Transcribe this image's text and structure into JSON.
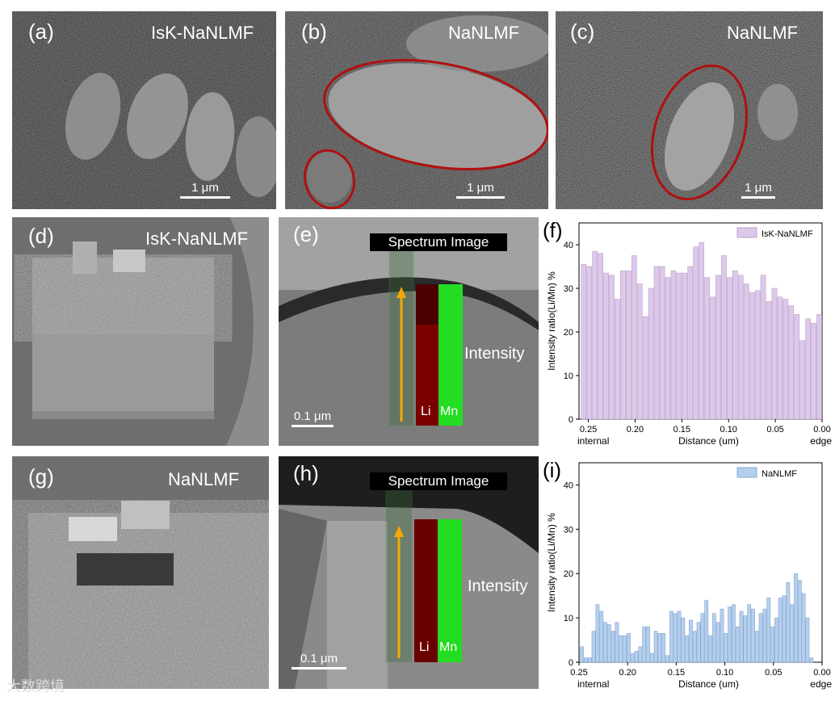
{
  "panels": {
    "a": {
      "label": "(a)",
      "title": "IsK-NaNLMF",
      "scale": "1 μm"
    },
    "b": {
      "label": "(b)",
      "title": "NaNLMF",
      "scale": "1 μm"
    },
    "c": {
      "label": "(c)",
      "title": "NaNLMF",
      "scale": "1 μm"
    },
    "d": {
      "label": "(d)",
      "title": "IsK-NaNLMF"
    },
    "e": {
      "label": "(e)",
      "spectrum": "Spectrum Image",
      "intensity": "Intensity",
      "li": "Li",
      "mn": "Mn",
      "scale": "0.1 μm"
    },
    "f": {
      "label": "(f)"
    },
    "g": {
      "label": "(g)",
      "title": "NaNLMF"
    },
    "h": {
      "label": "(h)",
      "spectrum": "Spectrum Image",
      "intensity": "Intensity",
      "li": "Li",
      "mn": "Mn",
      "scale": "0.1 μm"
    },
    "i": {
      "label": "(i)"
    }
  },
  "watermark": "大数跨境",
  "colors": {
    "f_bar": "#ddc8ea",
    "f_edge": "#b9a0c9",
    "i_bar": "#b4cfee",
    "i_edge": "#8aa9cf",
    "li": "#7a0000",
    "mn": "#22dd22",
    "arrow": "#f5a800",
    "ellipse": "#b01010"
  },
  "chart_data": [
    {
      "type": "bar",
      "panel": "f",
      "ylabel": "Intensity ratio(Li/Mn) %",
      "xlabel": "Distance (um)",
      "left_note": "internal",
      "right_note": "edge",
      "legend": "IsK-NaNLMF",
      "legend_position": "top-right",
      "xlim": [
        0.26,
        0.0
      ],
      "ylim": [
        0,
        45
      ],
      "xticks": [
        "0.25",
        "0.20",
        "0.15",
        "0.10",
        "0.05",
        "0.00"
      ],
      "yticks": [
        "0",
        "10",
        "20",
        "30",
        "40"
      ],
      "series": [
        {
          "name": "IsK-NaNLMF",
          "x": [
            0.255,
            0.249,
            0.243,
            0.237,
            0.231,
            0.225,
            0.219,
            0.213,
            0.207,
            0.201,
            0.195,
            0.189,
            0.183,
            0.177,
            0.171,
            0.165,
            0.159,
            0.153,
            0.147,
            0.141,
            0.135,
            0.129,
            0.123,
            0.117,
            0.111,
            0.105,
            0.099,
            0.093,
            0.087,
            0.081,
            0.075,
            0.069,
            0.063,
            0.057,
            0.051,
            0.045,
            0.039,
            0.033,
            0.027,
            0.021,
            0.015,
            0.009,
            0.003
          ],
          "values": [
            35.5,
            35,
            38.5,
            38,
            33.5,
            33,
            27.5,
            34,
            34,
            37.5,
            31,
            23.5,
            30,
            35,
            35,
            32.5,
            34,
            33.5,
            33.5,
            35,
            39.5,
            40.5,
            32.5,
            28,
            33,
            37.5,
            32.5,
            34,
            33,
            31,
            29,
            29.5,
            33,
            27,
            30,
            28,
            27.5,
            26,
            24,
            18,
            23,
            22,
            24
          ]
        }
      ]
    },
    {
      "type": "bar",
      "panel": "i",
      "ylabel": "Intensity ratio(Li/Mn) %",
      "xlabel": "Distance (um)",
      "left_note": "internal",
      "right_note": "edge",
      "legend": "NaNLMF",
      "legend_position": "top-right",
      "xlim": [
        0.25,
        0.0
      ],
      "ylim": [
        0,
        45
      ],
      "xticks": [
        "0.25",
        "0.20",
        "0.15",
        "0.10",
        "0.05",
        "0.00"
      ],
      "yticks": [
        "0",
        "10",
        "20",
        "30",
        "40"
      ],
      "series": [
        {
          "name": "NaNLMF",
          "x": [
            0.247,
            0.243,
            0.239,
            0.235,
            0.231,
            0.227,
            0.223,
            0.219,
            0.215,
            0.211,
            0.207,
            0.203,
            0.199,
            0.195,
            0.191,
            0.187,
            0.183,
            0.179,
            0.175,
            0.171,
            0.167,
            0.163,
            0.159,
            0.155,
            0.151,
            0.147,
            0.143,
            0.139,
            0.135,
            0.131,
            0.127,
            0.123,
            0.119,
            0.115,
            0.111,
            0.107,
            0.103,
            0.099,
            0.095,
            0.091,
            0.087,
            0.083,
            0.079,
            0.075,
            0.071,
            0.067,
            0.063,
            0.059,
            0.055,
            0.051,
            0.047,
            0.043,
            0.039,
            0.035,
            0.031,
            0.027,
            0.023,
            0.019,
            0.015,
            0.011
          ],
          "values": [
            3.5,
            1,
            1,
            7,
            13,
            11.5,
            9,
            8.5,
            7,
            9,
            6,
            6,
            6.5,
            2,
            2.5,
            3.5,
            8,
            8,
            2,
            7,
            6.5,
            6.5,
            1.5,
            11.5,
            11,
            11.5,
            10,
            6,
            9.5,
            7,
            9,
            11,
            14,
            6,
            11,
            9,
            12,
            6.5,
            12.5,
            13,
            8,
            11.5,
            10.5,
            13,
            12,
            7,
            11,
            12,
            14.5,
            8,
            10,
            14.5,
            15,
            18,
            13,
            20,
            18.5,
            15.5,
            10,
            1
          ]
        }
      ]
    }
  ]
}
